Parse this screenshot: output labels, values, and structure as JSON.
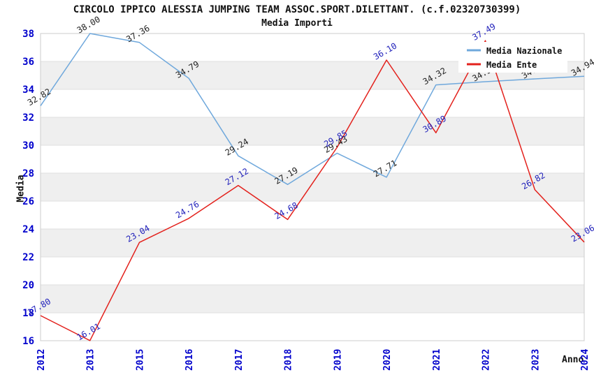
{
  "chart_data": {
    "type": "line",
    "title": "CIRCOLO IPPICO ALESSIA JUMPING TEAM ASSOC.SPORT.DILETTANT. (c.f.02320730399)",
    "subtitle": "Media Importi",
    "xlabel": "Anno",
    "ylabel": "Media",
    "ylim": [
      16,
      38
    ],
    "ytick_step": 2,
    "grid": "alternating-horizontal-bands",
    "legend_position": "top-right",
    "categories": [
      "2012",
      "2013",
      "2015",
      "2016",
      "2017",
      "2018",
      "2019",
      "2020",
      "2021",
      "2022",
      "2023",
      "2024"
    ],
    "series": [
      {
        "name": "Media Nazionale",
        "color": "#6FA8DC",
        "label_color": "#222222",
        "values": [
          32.82,
          38.0,
          37.36,
          34.79,
          29.24,
          27.19,
          29.43,
          27.71,
          34.32,
          34.55,
          34.75,
          34.94
        ],
        "point_labels": [
          "32.82",
          "38.00",
          "37.36",
          "34.79",
          "29.24",
          "27.19",
          "29.43",
          "27.71",
          "34.32",
          "34.55",
          "34.75",
          "34.94"
        ]
      },
      {
        "name": "Media Ente",
        "color": "#E3211C",
        "label_color": "#2222BB",
        "values": [
          17.8,
          16.01,
          23.04,
          24.76,
          27.12,
          24.68,
          29.85,
          36.1,
          30.89,
          37.49,
          26.82,
          23.06
        ],
        "point_labels": [
          "17.80",
          "16.01",
          "23.04",
          "24.76",
          "27.12",
          "24.68",
          "29.85",
          "36.10",
          "30.89",
          "37.49",
          "26.82",
          "23.06"
        ]
      }
    ],
    "colors": {
      "tick": "#0000CC",
      "band": "#EFEFEF",
      "grid": "#DFDFDF",
      "border": "#CCCCCC",
      "legend_bg": "#FFFFFF",
      "text": "#111111"
    }
  }
}
